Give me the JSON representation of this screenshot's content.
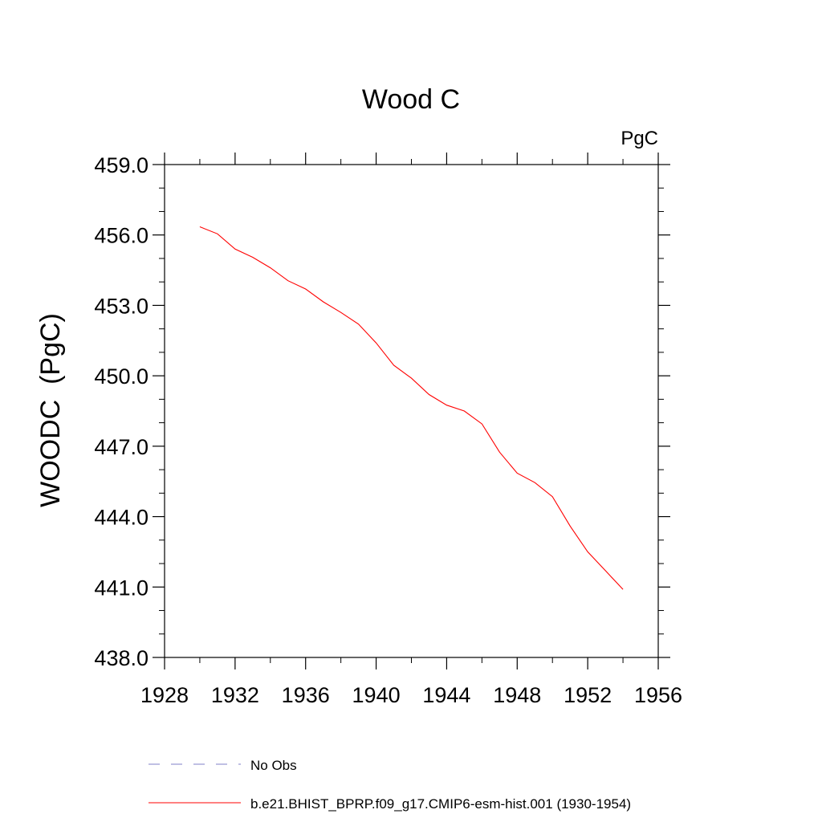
{
  "chart_data": {
    "type": "line",
    "title": "Wood C",
    "units_label": "PgC",
    "ylabel": "WOODC  (PgC)",
    "xlabel": "",
    "xlim": [
      1928,
      1956
    ],
    "ylim": [
      438.0,
      459.0
    ],
    "x_ticks": [
      1928,
      1932,
      1936,
      1940,
      1944,
      1948,
      1952,
      1956
    ],
    "x_tick_labels": [
      "1928",
      "1932",
      "1936",
      "1940",
      "1944",
      "1948",
      "1952",
      "1956"
    ],
    "y_ticks": [
      438.0,
      441.0,
      444.0,
      447.0,
      450.0,
      453.0,
      456.0,
      459.0
    ],
    "y_tick_labels": [
      "438.0",
      "441.0",
      "444.0",
      "447.0",
      "450.0",
      "453.0",
      "456.0",
      "459.0"
    ],
    "grid": false,
    "legend_position": "bottom",
    "series": [
      {
        "name": "b.e21.BHIST_BPRP.f09_g17.CMIP6-esm-hist.001 (1930-1954)",
        "color": "#ff0000",
        "style": "solid",
        "x": [
          1930,
          1931,
          1932,
          1933,
          1934,
          1935,
          1936,
          1937,
          1938,
          1939,
          1940,
          1941,
          1942,
          1943,
          1944,
          1945,
          1946,
          1947,
          1948,
          1949,
          1950,
          1951,
          1952,
          1953,
          1954
        ],
        "values": [
          456.35,
          456.05,
          455.4,
          455.05,
          454.6,
          454.05,
          453.7,
          453.15,
          452.7,
          452.2,
          451.4,
          450.45,
          449.9,
          449.2,
          448.75,
          448.5,
          447.95,
          446.75,
          445.85,
          445.45,
          444.85,
          443.6,
          442.5,
          441.7,
          440.9
        ]
      }
    ],
    "legend": [
      {
        "label": "No Obs",
        "color": "#8080c8",
        "style": "dashed"
      },
      {
        "label": "b.e21.BHIST_BPRP.f09_g17.CMIP6-esm-hist.001 (1930-1954)",
        "color": "#ff0000",
        "style": "solid"
      }
    ]
  }
}
